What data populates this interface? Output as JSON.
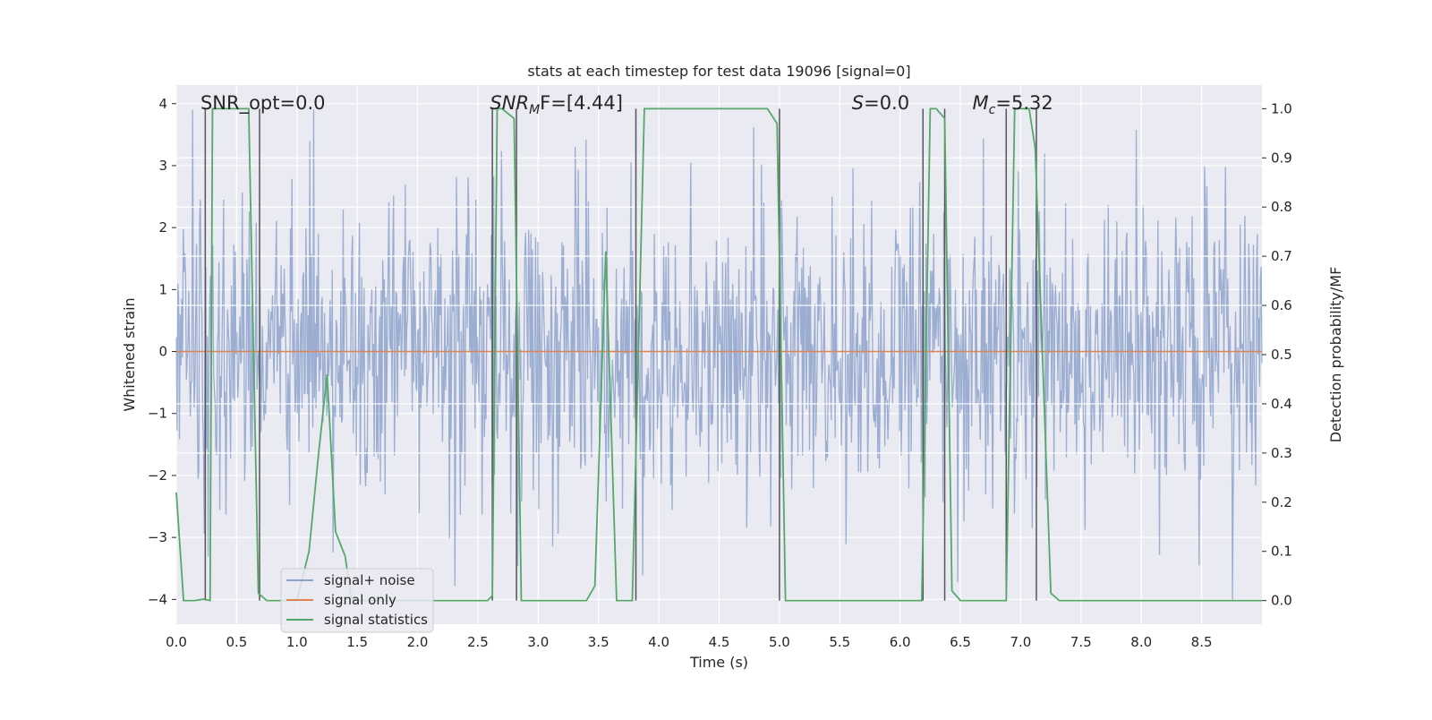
{
  "chart_data": {
    "type": "line",
    "title": "stats at each timestep for test data 19096 [signal=0]",
    "xlabel": "Time (s)",
    "ylabel_left": "Whitened strain",
    "ylabel_right": "Detection probability/MF",
    "xlim": [
      0.0,
      9.0
    ],
    "ylim_left": [
      -4.4,
      4.3
    ],
    "ylim_right": [
      -0.048,
      1.048
    ],
    "x_ticks": [
      0.0,
      0.5,
      1.0,
      1.5,
      2.0,
      2.5,
      3.0,
      3.5,
      4.0,
      4.5,
      5.0,
      5.5,
      6.0,
      6.5,
      7.0,
      7.5,
      8.0,
      8.5
    ],
    "x_tick_labels": [
      "0.0",
      "0.5",
      "1.0",
      "1.5",
      "2.0",
      "2.5",
      "3.0",
      "3.5",
      "4.0",
      "4.5",
      "5.0",
      "5.5",
      "6.0",
      "6.5",
      "7.0",
      "7.5",
      "8.0",
      "8.5"
    ],
    "y_left_ticks": [
      -4,
      -3,
      -2,
      -1,
      0,
      1,
      2,
      3,
      4
    ],
    "y_left_tick_labels": [
      "−4",
      "−3",
      "−2",
      "−1",
      "0",
      "1",
      "2",
      "3",
      "4"
    ],
    "y_right_ticks": [
      0.0,
      0.1,
      0.2,
      0.3,
      0.4,
      0.5,
      0.6,
      0.7,
      0.8,
      0.9,
      1.0
    ],
    "y_right_tick_labels": [
      "0.0",
      "0.1",
      "0.2",
      "0.3",
      "0.4",
      "0.5",
      "0.6",
      "0.7",
      "0.8",
      "0.9",
      "1.0"
    ],
    "right_grid_ticks": [
      0.3,
      0.4,
      0.6,
      0.7,
      0.8,
      0.9
    ],
    "annotations": [
      {
        "kind": "plain",
        "text": "SNR_opt=0.0",
        "x": 0.2,
        "y": 4.0
      },
      {
        "kind": "sub",
        "main": "SNR",
        "sub": "M",
        "suffix": "F=[4.44]",
        "x": 2.6,
        "y": 4.0
      },
      {
        "kind": "italic",
        "main": "S",
        "suffix": "=0.0",
        "x": 5.6,
        "y": 4.0
      },
      {
        "kind": "sub",
        "main": "M",
        "sub": "c",
        "suffix": "=5.32",
        "x": 6.6,
        "y": 4.0
      }
    ],
    "series": [
      {
        "name": "signal+ noise",
        "color": "#4c72b0",
        "axis": "left",
        "style": "noise",
        "seed": 19096,
        "samples": 1400,
        "sigma": 1.0,
        "envelope_max": 3.95,
        "envelope_min": -4.0
      },
      {
        "name": "signal only",
        "color": "#dd8452",
        "axis": "left",
        "x": [
          0.0,
          9.0
        ],
        "y": [
          0.0,
          0.0
        ]
      },
      {
        "name": "signal statistics",
        "color": "#55a868",
        "axis": "right",
        "x": [
          0.0,
          0.06,
          0.15,
          0.23,
          0.28,
          0.3,
          0.4,
          0.6,
          0.68,
          0.75,
          0.8,
          0.9,
          1.0,
          1.1,
          1.18,
          1.25,
          1.32,
          1.4,
          1.45,
          1.5,
          2.0,
          2.5,
          2.58,
          2.62,
          2.66,
          2.7,
          2.8,
          2.86,
          3.0,
          3.4,
          3.47,
          3.56,
          3.65,
          3.78,
          3.88,
          4.0,
          4.9,
          4.98,
          5.05,
          5.5,
          6.0,
          6.18,
          6.25,
          6.3,
          6.37,
          6.43,
          6.5,
          6.8,
          6.88,
          6.95,
          7.0,
          7.07,
          7.12,
          7.25,
          7.32,
          7.5,
          8.0,
          8.5,
          9.0
        ],
        "y": [
          0.22,
          0.0,
          0.0,
          0.003,
          0.0,
          1.0,
          1.0,
          1.0,
          0.015,
          0.0,
          0.0,
          0.0,
          0.0,
          0.1,
          0.3,
          0.46,
          0.14,
          0.09,
          0.005,
          0.0,
          0.0,
          0.0,
          0.0,
          0.01,
          1.0,
          1.0,
          0.98,
          0.0,
          0.0,
          0.0,
          0.03,
          0.71,
          0.0,
          0.0,
          1.0,
          1.0,
          1.0,
          0.97,
          0.0,
          0.0,
          0.0,
          0.0,
          1.0,
          1.0,
          0.98,
          0.02,
          0.0,
          0.0,
          0.0,
          1.0,
          1.0,
          1.0,
          0.92,
          0.015,
          0.0,
          0.0,
          0.0,
          0.0,
          0.0
        ]
      }
    ],
    "vertical_markers": {
      "color": "#555555",
      "x": [
        0.24,
        0.69,
        2.62,
        2.82,
        3.81,
        5.0,
        6.19,
        6.37,
        6.88,
        7.13
      ]
    },
    "legend": {
      "placement": "lower-left",
      "entries": [
        {
          "label": "signal+ noise",
          "color": "#4c72b0"
        },
        {
          "label": "signal only",
          "color": "#dd8452"
        },
        {
          "label": "signal statistics",
          "color": "#55a868"
        }
      ]
    }
  }
}
